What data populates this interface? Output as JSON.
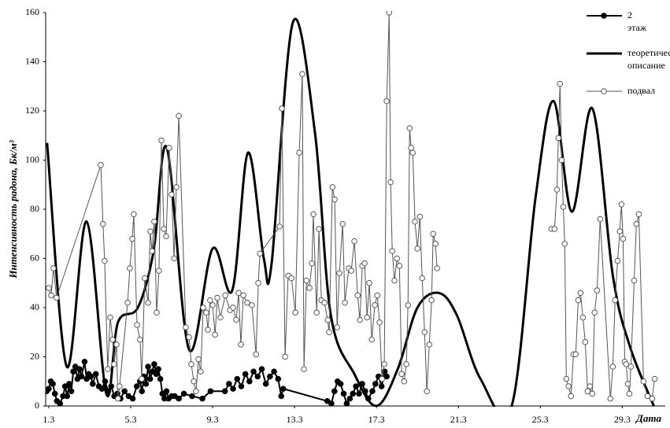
{
  "chart_data": {
    "type": "line",
    "y_label": "Интенсивность радона, Бк/м³",
    "x_label": "Дата",
    "xlim": [
      0.85,
      31.1
    ],
    "xticks": [
      {
        "value": 1,
        "label": "1.3"
      },
      {
        "value": 5,
        "label": "5.3"
      },
      {
        "value": 9,
        "label": "9.3"
      },
      {
        "value": 13,
        "label": "13.3"
      },
      {
        "value": 17,
        "label": "17.3"
      },
      {
        "value": 21,
        "label": "21.3"
      },
      {
        "value": 25,
        "label": "25.3"
      },
      {
        "value": 29,
        "label": "29.3"
      }
    ],
    "ylim": [
      0,
      160
    ],
    "yticks": [
      0,
      20,
      40,
      60,
      80,
      100,
      120,
      140,
      160
    ],
    "grid": false,
    "legend": "upper right",
    "series": [
      {
        "name": "2 этаж",
        "color": "#000000",
        "marker": "filled",
        "line_width": 2,
        "smooth": false,
        "x": [
          0.9,
          1.0,
          1.1,
          1.2,
          1.3,
          1.4,
          1.55,
          1.7,
          1.8,
          1.9,
          2.0,
          2.1,
          2.2,
          2.3,
          2.4,
          2.5,
          2.6,
          2.75,
          2.85,
          2.95,
          3.05,
          3.15,
          3.3,
          3.45,
          3.6,
          3.75,
          3.9,
          4.05,
          4.2,
          4.35,
          4.5,
          4.7,
          4.9,
          5.1,
          5.3,
          5.45,
          5.55,
          5.65,
          5.75,
          5.85,
          5.95,
          6.05,
          6.15,
          6.25,
          6.35,
          6.45,
          6.55,
          6.65,
          6.75,
          6.85,
          7.0,
          7.15,
          7.35,
          7.6,
          8.0,
          8.5,
          8.9,
          9.6,
          9.8,
          10.0,
          10.2,
          10.4,
          10.6,
          10.8,
          11.0,
          11.2,
          11.4,
          11.6,
          11.8,
          12.0,
          12.2,
          12.35,
          12.45,
          14.6,
          14.8,
          14.95,
          15.1,
          15.25,
          15.4,
          15.55,
          15.7,
          15.85,
          16.0,
          16.15,
          16.3,
          16.45,
          16.6,
          16.8,
          16.95,
          17.1,
          17.25,
          17.4,
          17.5
        ],
        "values": [
          6,
          7,
          10,
          9,
          5,
          2,
          1,
          4,
          8,
          4,
          9,
          6,
          14,
          16,
          11,
          15,
          12,
          18,
          11,
          13,
          12,
          9,
          13,
          8,
          7,
          10,
          6,
          8,
          4,
          5,
          3,
          6,
          4,
          3,
          8,
          10,
          6,
          12,
          9,
          16,
          11,
          14,
          17,
          13,
          15,
          11,
          5,
          3,
          6,
          3,
          4,
          4,
          3,
          5,
          4,
          3,
          6,
          6,
          9,
          7,
          11,
          8,
          13,
          10,
          14,
          12,
          15,
          9,
          12,
          14,
          11,
          4,
          7,
          2,
          1,
          6,
          10,
          9,
          5,
          1,
          3,
          5,
          8,
          5,
          9,
          6,
          3,
          6,
          9,
          12,
          8,
          14,
          12
        ]
      },
      {
        "name": "теоретическое описание",
        "color": "#000000",
        "marker": "none",
        "line_width": 3,
        "smooth": true,
        "x": [
          0.92,
          1.88,
          2.85,
          3.81,
          4.38,
          5.35,
          6.12,
          6.77,
          7.85,
          9.0,
          9.96,
          10.73,
          11.5,
          11.88,
          12.92,
          14.0,
          14.77,
          15.92,
          17.0,
          18.04,
          19.0,
          20.04,
          20.92,
          22.08,
          23.6,
          24.77,
          25.65,
          26.54,
          27.54,
          28.54,
          29.38,
          30.54
        ],
        "values": [
          107,
          16,
          75,
          5,
          34,
          40,
          63,
          105,
          23,
          64,
          47,
          103,
          60,
          58,
          156,
          111,
          37,
          13,
          0,
          15,
          40,
          46,
          37,
          11,
          0,
          85,
          124,
          79,
          121,
          53,
          24,
          0
        ]
      },
      {
        "name": "подвал",
        "color": "#555555",
        "marker": "open",
        "line_width": 1,
        "smooth": false,
        "x": [
          1.0,
          1.12,
          1.23,
          1.38,
          3.54,
          3.65,
          3.73,
          3.88,
          4.0,
          4.12,
          4.19,
          4.31,
          4.38,
          4.46,
          4.85,
          4.96,
          5.08,
          5.15,
          5.31,
          5.46,
          5.54,
          5.69,
          5.85,
          5.96,
          6.04,
          6.15,
          6.27,
          6.38,
          6.5,
          6.62,
          6.73,
          6.88,
          7.0,
          7.12,
          7.23,
          7.35,
          7.69,
          7.85,
          7.96,
          8.08,
          8.19,
          8.31,
          8.42,
          8.54,
          8.69,
          8.77,
          8.88,
          9.0,
          9.12,
          9.23,
          9.38,
          9.62,
          9.85,
          10.0,
          10.15,
          10.27,
          10.38,
          10.5,
          10.69,
          10.92,
          11.12,
          11.23,
          11.31,
          12.27,
          12.38,
          12.54,
          12.69,
          12.85,
          13.04,
          13.23,
          13.38,
          13.46,
          13.58,
          13.73,
          13.85,
          13.92,
          14.08,
          14.19,
          14.31,
          14.46,
          14.62,
          14.69,
          14.85,
          14.96,
          15.08,
          15.19,
          15.35,
          15.46,
          15.65,
          15.77,
          15.92,
          16.08,
          16.19,
          16.31,
          16.42,
          16.54,
          16.65,
          16.77,
          16.92,
          17.04,
          17.15,
          17.27,
          17.38,
          17.5,
          17.62,
          17.69,
          17.77,
          17.88,
          18.0,
          18.12,
          18.23,
          18.35,
          18.46,
          18.54,
          18.62,
          18.69,
          18.77,
          18.88,
          19.0,
          19.12,
          19.23,
          19.35,
          19.46,
          19.58,
          19.69,
          19.77,
          19.88,
          19.96,
          null,
          25.54,
          25.69,
          25.81,
          25.88,
          25.96,
          26.04,
          26.12,
          26.19,
          26.27,
          26.38,
          26.5,
          26.62,
          26.73,
          26.85,
          26.96,
          27.08,
          27.19,
          27.31,
          27.42,
          27.54,
          27.65,
          27.77,
          27.92,
          28.42,
          28.54,
          28.65,
          28.77,
          28.88,
          28.96,
          29.04,
          29.12,
          29.19,
          29.27,
          29.35,
          29.42,
          29.58,
          29.69,
          29.81,
          30.04,
          30.23,
          30.46,
          30.58
        ],
        "values": [
          48,
          45,
          56,
          44,
          98,
          74,
          59,
          15,
          36,
          27,
          17,
          25,
          3,
          8,
          42,
          56,
          68,
          78,
          33,
          27,
          11,
          52,
          42,
          71,
          63,
          75,
          38,
          55,
          108,
          72,
          69,
          105,
          86,
          60,
          89,
          118,
          32,
          28,
          17,
          10,
          6,
          19,
          14,
          40,
          38,
          31,
          43,
          41,
          29,
          44,
          36,
          45,
          39,
          40,
          35,
          46,
          25,
          45,
          42,
          41,
          21,
          50,
          62,
          73,
          121,
          20,
          53,
          52,
          38,
          103,
          135,
          15,
          51,
          48,
          58,
          78,
          38,
          72,
          43,
          42,
          35,
          30,
          89,
          84,
          32,
          54,
          74,
          42,
          56,
          55,
          67,
          45,
          35,
          57,
          58,
          36,
          50,
          27,
          41,
          45,
          34,
          11,
          17,
          124,
          160,
          91,
          63,
          51,
          60,
          57,
          13,
          10,
          17,
          41,
          113,
          105,
          103,
          75,
          64,
          77,
          52,
          30,
          6,
          25,
          43,
          70,
          66,
          56,
          null,
          72,
          72,
          88,
          109,
          131,
          100,
          81,
          66,
          11,
          8,
          4,
          21,
          21,
          43,
          46,
          36,
          26,
          6,
          8,
          5,
          38,
          47,
          76,
          3,
          16,
          43,
          59,
          71,
          82,
          68,
          18,
          17,
          9,
          5,
          16,
          51,
          74,
          78,
          10,
          4,
          3,
          11
        ]
      }
    ]
  }
}
